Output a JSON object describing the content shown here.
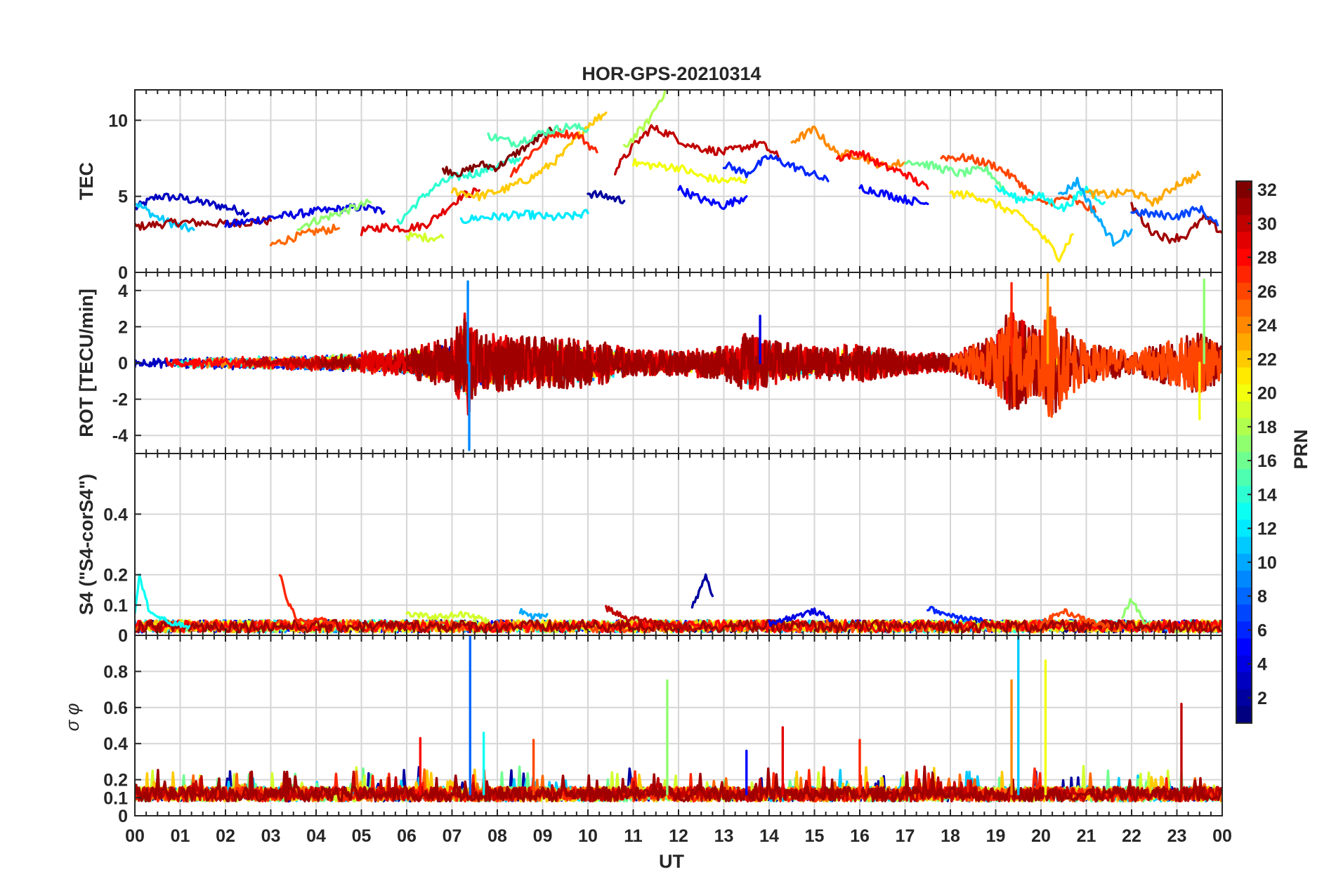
{
  "chart_data": {
    "type": "line",
    "title": "HOR-GPS-20210314",
    "xlabel": "UT",
    "x_range_hours": [
      0,
      24
    ],
    "x_ticks": [
      "00",
      "01",
      "02",
      "03",
      "04",
      "05",
      "06",
      "07",
      "08",
      "09",
      "10",
      "11",
      "12",
      "13",
      "14",
      "15",
      "16",
      "17",
      "18",
      "19",
      "20",
      "21",
      "22",
      "23",
      "00"
    ],
    "panels": [
      {
        "id": "tec",
        "ylabel": "TEC",
        "ylim": [
          0,
          12
        ],
        "y_ticks": [
          0,
          5,
          10
        ],
        "y_tick_labels": [
          "0",
          "5",
          "10"
        ],
        "grid": true,
        "series": [
          {
            "prn": 3,
            "x": [
              0,
              0.5,
              1,
              1.5,
              2,
              2.5
            ],
            "y": [
              4.2,
              5.0,
              4.9,
              4.6,
              4.3,
              3.9
            ]
          },
          {
            "prn": 11,
            "x": [
              0,
              0.5,
              1,
              1.3
            ],
            "y": [
              4.6,
              3.6,
              3.0,
              2.8
            ]
          },
          {
            "prn": 31,
            "x": [
              0,
              1,
              2,
              3
            ],
            "y": [
              3.0,
              3.3,
              3.2,
              3.4
            ]
          },
          {
            "prn": 4,
            "x": [
              2,
              3,
              4,
              5,
              5.5
            ],
            "y": [
              3.1,
              3.6,
              4.0,
              4.3,
              4.0
            ]
          },
          {
            "prn": 17,
            "x": [
              3.6,
              4.2,
              4.8,
              5.2
            ],
            "y": [
              3.0,
              3.6,
              4.2,
              4.6
            ]
          },
          {
            "prn": 25,
            "x": [
              3.0,
              3.5,
              4.0,
              4.5
            ],
            "y": [
              1.8,
              2.3,
              2.7,
              2.9
            ]
          },
          {
            "prn": 29,
            "x": [
              5.0,
              5.5,
              6.0,
              6.4,
              6.8,
              7.2,
              7.6
            ],
            "y": [
              2.7,
              3.0,
              2.9,
              3.1,
              4.0,
              5.0,
              5.4
            ]
          },
          {
            "prn": 14,
            "x": [
              5.8,
              6.2,
              6.6,
              7.0,
              7.5,
              8.0,
              8.5
            ],
            "y": [
              3.2,
              4.5,
              5.6,
              6.2,
              6.5,
              7.0,
              7.5
            ]
          },
          {
            "prn": 19,
            "x": [
              6.0,
              6.4,
              6.8
            ],
            "y": [
              2.4,
              2.3,
              2.3
            ]
          },
          {
            "prn": 32,
            "x": [
              6.8,
              7.2,
              7.6,
              8.0,
              8.4,
              8.8,
              9.2
            ],
            "y": [
              6.8,
              6.5,
              7.1,
              6.9,
              7.8,
              8.6,
              9.3
            ]
          },
          {
            "prn": 12,
            "x": [
              7.2,
              7.6,
              8.2,
              8.7,
              9.2,
              9.7,
              10.0
            ],
            "y": [
              3.4,
              3.6,
              3.7,
              3.8,
              3.6,
              3.7,
              3.9
            ]
          },
          {
            "prn": 22,
            "x": [
              7.0,
              7.6,
              8.2,
              8.8,
              9.4,
              10.0,
              10.4
            ],
            "y": [
              5.4,
              5.0,
              5.5,
              6.3,
              7.6,
              9.7,
              10.5
            ]
          },
          {
            "prn": 27,
            "x": [
              8.3,
              8.8,
              9.3,
              9.8,
              10.2
            ],
            "y": [
              6.5,
              8.0,
              9.2,
              9.0,
              7.9
            ]
          },
          {
            "prn": 15,
            "x": [
              7.8,
              8.4,
              9.0,
              9.6,
              10.0
            ],
            "y": [
              9.0,
              8.5,
              9.2,
              9.6,
              9.4
            ]
          },
          {
            "prn": 2,
            "x": [
              10.0,
              10.4,
              10.8
            ],
            "y": [
              5.2,
              5.0,
              4.7
            ]
          },
          {
            "prn": 30,
            "x": [
              10.6,
              11.0,
              11.4,
              11.8,
              12.2,
              12.6,
              13.0,
              13.4,
              13.8,
              14.2
            ],
            "y": [
              6.7,
              8.3,
              9.5,
              9.1,
              8.4,
              8.1,
              7.9,
              8.2,
              8.5,
              7.6
            ]
          },
          {
            "prn": 18,
            "x": [
              10.8,
              11.3,
              11.7
            ],
            "y": [
              8.2,
              9.8,
              11.9
            ]
          },
          {
            "prn": 20,
            "x": [
              11.0,
              11.5,
              12.0,
              12.5,
              13.0,
              13.5
            ],
            "y": [
              7.2,
              7.0,
              6.9,
              6.3,
              6.0,
              6.1
            ]
          },
          {
            "prn": 5,
            "x": [
              12.0,
              12.5,
              13.0,
              13.5
            ],
            "y": [
              5.5,
              4.8,
              4.4,
              5.0
            ]
          },
          {
            "prn": 6,
            "x": [
              13.0,
              13.5,
              14.0,
              14.5,
              15.0,
              15.3
            ],
            "y": [
              7.1,
              6.5,
              7.6,
              7.0,
              6.4,
              6.0
            ]
          },
          {
            "prn": 24,
            "x": [
              14.5,
              15.0,
              15.5,
              16.0,
              16.5,
              17.0
            ],
            "y": [
              8.6,
              9.4,
              7.8,
              7.7,
              7.0,
              7.2
            ]
          },
          {
            "prn": 28,
            "x": [
              15.5,
              16.0,
              16.5,
              17.0,
              17.5
            ],
            "y": [
              7.5,
              7.9,
              7.0,
              6.5,
              5.5
            ]
          },
          {
            "prn": 5,
            "x": [
              16.0,
              16.5,
              17.0,
              17.5
            ],
            "y": [
              5.6,
              5.2,
              4.8,
              4.5
            ]
          },
          {
            "prn": 16,
            "x": [
              17.0,
              17.6,
              18.2,
              18.8,
              19.2
            ],
            "y": [
              7.4,
              7.0,
              6.5,
              6.8,
              5.4
            ]
          },
          {
            "prn": 26,
            "x": [
              17.8,
              18.4,
              19.0,
              19.5,
              20.0,
              20.6,
              21.2
            ],
            "y": [
              7.6,
              7.5,
              7.0,
              6.0,
              4.5,
              4.9,
              4.0
            ]
          },
          {
            "prn": 21,
            "x": [
              18.0,
              18.6,
              19.2,
              19.6,
              20.0,
              20.4,
              20.7
            ],
            "y": [
              5.2,
              5.0,
              4.2,
              3.6,
              2.5,
              1.0,
              2.5
            ]
          },
          {
            "prn": 13,
            "x": [
              19.0,
              19.5,
              20.0,
              20.5,
              21.0,
              21.4
            ],
            "y": [
              5.6,
              4.8,
              5.0,
              4.2,
              5.5,
              4.6
            ]
          },
          {
            "prn": 10,
            "x": [
              20.4,
              20.8,
              21.2,
              21.6,
              22.0
            ],
            "y": [
              5.0,
              6.0,
              3.8,
              2.0,
              2.8
            ]
          },
          {
            "prn": 23,
            "x": [
              21.0,
              21.5,
              22.0,
              22.5,
              23.0,
              23.5
            ],
            "y": [
              5.2,
              5.1,
              5.3,
              4.6,
              5.8,
              6.4
            ]
          },
          {
            "prn": 31,
            "x": [
              22.0,
              22.4,
              22.8,
              23.2,
              23.6,
              24.0
            ],
            "y": [
              4.4,
              2.8,
              2.2,
              2.4,
              3.6,
              2.6
            ]
          },
          {
            "prn": 7,
            "x": [
              22.0,
              22.5,
              23.0,
              23.5,
              23.9
            ],
            "y": [
              4.0,
              3.8,
              3.7,
              4.2,
              3.1
            ]
          }
        ]
      },
      {
        "id": "rot",
        "ylabel": "ROT [TECU/min]",
        "ylim": [
          -5,
          5
        ],
        "y_ticks": [
          -4,
          -2,
          0,
          2,
          4
        ],
        "y_tick_labels": [
          "-4",
          "-2",
          "0",
          "2",
          "4"
        ],
        "grid": true,
        "activity_envelope": {
          "hours": [
            0,
            3,
            5,
            6,
            6.5,
            7,
            7.3,
            7.6,
            8,
            9,
            10,
            11,
            12,
            13,
            13.5,
            14,
            15,
            16,
            17,
            18,
            19,
            19.3,
            19.6,
            20,
            20.2,
            20.6,
            21,
            21.5,
            22,
            23,
            23.5,
            24
          ],
          "amplitude": [
            0.5,
            0.7,
            0.9,
            1.1,
            1.6,
            2.0,
            4.5,
            2.2,
            2.3,
            2.0,
            2.0,
            1.0,
            1.0,
            1.3,
            2.4,
            1.8,
            1.3,
            1.5,
            0.9,
            0.7,
            2.2,
            4.3,
            3.4,
            2.6,
            4.6,
            2.8,
            1.5,
            1.4,
            0.8,
            2.0,
            2.4,
            1.5
          ]
        },
        "peaks": [
          {
            "prn": 9,
            "hour": 7.35,
            "value": 4.5
          },
          {
            "prn": 9,
            "hour": 7.38,
            "value": -4.8
          },
          {
            "prn": 4,
            "hour": 13.8,
            "value": 2.6
          },
          {
            "prn": 27,
            "hour": 19.35,
            "value": 4.4
          },
          {
            "prn": 23,
            "hour": 20.15,
            "value": 4.9
          },
          {
            "prn": 17,
            "hour": 23.6,
            "value": 4.6
          },
          {
            "prn": 20,
            "hour": 23.5,
            "value": -3.1
          }
        ]
      },
      {
        "id": "s4",
        "ylabel": "S4 (\"S4-corS4\")",
        "ylim": [
          0,
          0.6
        ],
        "y_ticks": [
          0,
          0.1,
          0.2,
          0.4
        ],
        "y_tick_labels": [
          "0",
          "0.1",
          "0.2",
          "0.4"
        ],
        "grid": true,
        "series": [
          {
            "prn": 13,
            "x": [
              0,
              0.1,
              0.2,
              0.3,
              0.5,
              0.8,
              1.2
            ],
            "y": [
              0.08,
              0.2,
              0.14,
              0.09,
              0.06,
              0.04,
              0.03
            ]
          },
          {
            "prn": 27,
            "x": [
              3.2,
              3.4,
              3.6,
              3.8,
              4.1,
              4.4
            ],
            "y": [
              0.2,
              0.1,
              0.05,
              0.04,
              0.06,
              0.03
            ]
          },
          {
            "prn": 2,
            "x": [
              12.3,
              12.45,
              12.6,
              12.75
            ],
            "y": [
              0.1,
              0.14,
              0.2,
              0.13
            ]
          },
          {
            "prn": 30,
            "x": [
              10.4,
              10.8,
              11.2,
              11.6,
              12.0,
              12.4
            ],
            "y": [
              0.09,
              0.06,
              0.05,
              0.04,
              0.03,
              0.02
            ]
          },
          {
            "prn": 6,
            "x": [
              17.5,
              17.9,
              18.3,
              18.7
            ],
            "y": [
              0.09,
              0.07,
              0.06,
              0.05
            ]
          },
          {
            "prn": 19,
            "x": [
              6.0,
              6.6,
              7.2,
              7.8
            ],
            "y": [
              0.07,
              0.06,
              0.07,
              0.05
            ]
          },
          {
            "prn": 10,
            "x": [
              8.5,
              8.8,
              9.1
            ],
            "y": [
              0.08,
              0.06,
              0.07
            ]
          },
          {
            "prn": 4,
            "x": [
              14.0,
              14.5,
              15.0,
              15.4
            ],
            "y": [
              0.04,
              0.06,
              0.08,
              0.05
            ]
          },
          {
            "prn": 26,
            "x": [
              20.0,
              20.5,
              21.0,
              21.5
            ],
            "y": [
              0.04,
              0.08,
              0.05,
              0.03
            ]
          },
          {
            "prn": 17,
            "x": [
              21.8,
              22.0,
              22.3
            ],
            "y": [
              0.06,
              0.12,
              0.04
            ]
          }
        ],
        "baseline_range": [
          0.01,
          0.05
        ]
      },
      {
        "id": "sigma_phi",
        "ylabel": "σ φ",
        "ylim": [
          0,
          1.0
        ],
        "y_ticks": [
          0,
          0.1,
          0.2,
          0.4,
          0.6,
          0.8
        ],
        "y_tick_labels": [
          "0",
          "0.1",
          "0.2",
          "0.4",
          "0.6",
          "0.8"
        ],
        "grid": true,
        "baseline_range": [
          0.08,
          0.16
        ],
        "spikes": [
          {
            "prn": 8,
            "hour": 7.4,
            "value": 1.0
          },
          {
            "prn": 17,
            "hour": 11.75,
            "value": 0.75
          },
          {
            "prn": 29,
            "hour": 14.3,
            "value": 0.49
          },
          {
            "prn": 27,
            "hour": 16.0,
            "value": 0.42
          },
          {
            "prn": 24,
            "hour": 19.35,
            "value": 0.75
          },
          {
            "prn": 11,
            "hour": 19.5,
            "value": 1.0
          },
          {
            "prn": 20,
            "hour": 20.1,
            "value": 0.86
          },
          {
            "prn": 30,
            "hour": 23.1,
            "value": 0.62
          },
          {
            "prn": 28,
            "hour": 6.3,
            "value": 0.43
          },
          {
            "prn": 26,
            "hour": 8.8,
            "value": 0.42
          },
          {
            "prn": 13,
            "hour": 7.7,
            "value": 0.46
          },
          {
            "prn": 5,
            "hour": 13.5,
            "value": 0.36
          }
        ]
      }
    ],
    "colorbar": {
      "label": "PRN",
      "range": [
        1,
        32
      ],
      "ticks": [
        2,
        4,
        6,
        8,
        10,
        12,
        14,
        16,
        18,
        20,
        22,
        24,
        26,
        28,
        30,
        32
      ],
      "tick_labels": [
        "2",
        "4",
        "6",
        "8",
        "10",
        "12",
        "14",
        "16",
        "18",
        "20",
        "22",
        "24",
        "26",
        "28",
        "30",
        "32"
      ],
      "colormap": "jet"
    }
  }
}
